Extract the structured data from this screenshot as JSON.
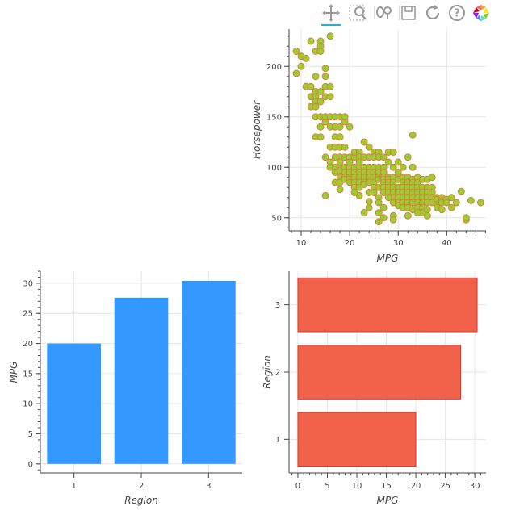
{
  "toolbar": {
    "tools": [
      {
        "name": "pan-tool-icon",
        "active": true
      },
      {
        "name": "box-zoom-tool-icon",
        "active": false
      },
      {
        "name": "lasso-select-tool-icon",
        "active": false
      },
      {
        "name": "save-tool-icon",
        "active": false
      },
      {
        "name": "reset-tool-icon",
        "active": false
      },
      {
        "name": "help-tool-icon",
        "active": false
      },
      {
        "name": "bokeh-logo-icon",
        "active": false
      }
    ]
  },
  "colors": {
    "scatter_fill": "#9ACD32",
    "scatter_line": "#E07A3A",
    "vbar_fill": "#3399FF",
    "hbar_fill": "#F2624A",
    "hbar_line": "#D23A2A",
    "axis": "#444444",
    "grid": "#e6e6e6"
  },
  "chart_data": [
    {
      "type": "scatter",
      "xlabel": "MPG",
      "ylabel": "Horsepower",
      "xlim": [
        7.5,
        48.1
      ],
      "ylim": [
        37,
        237
      ],
      "xticks": [
        10,
        20,
        30,
        40
      ],
      "yticks": [
        50,
        100,
        150,
        200
      ],
      "grid": true,
      "points": [
        [
          9,
          193
        ],
        [
          9,
          215
        ],
        [
          10,
          200
        ],
        [
          10,
          210
        ],
        [
          11,
          180
        ],
        [
          11,
          208
        ],
        [
          12,
          170
        ],
        [
          12,
          225
        ],
        [
          12,
          180
        ],
        [
          12,
          160
        ],
        [
          13,
          215
        ],
        [
          13,
          190
        ],
        [
          13,
          175
        ],
        [
          13,
          170
        ],
        [
          13,
          150
        ],
        [
          13,
          165
        ],
        [
          13,
          160
        ],
        [
          13,
          130
        ],
        [
          14,
          225
        ],
        [
          14,
          220
        ],
        [
          14,
          215
        ],
        [
          14,
          175
        ],
        [
          14,
          165
        ],
        [
          14,
          150
        ],
        [
          14,
          140
        ],
        [
          14,
          130
        ],
        [
          14,
          150
        ],
        [
          15,
          190
        ],
        [
          15,
          198
        ],
        [
          15,
          180
        ],
        [
          15,
          170
        ],
        [
          15,
          150
        ],
        [
          15,
          145
        ],
        [
          15,
          110
        ],
        [
          15,
          72
        ],
        [
          15,
          150
        ],
        [
          16,
          230
        ],
        [
          16,
          180
        ],
        [
          16,
          170
        ],
        [
          16,
          150
        ],
        [
          16,
          140
        ],
        [
          16,
          120
        ],
        [
          16,
          105
        ],
        [
          16,
          100
        ],
        [
          17,
          150
        ],
        [
          17,
          140
        ],
        [
          17,
          130
        ],
        [
          17,
          120
        ],
        [
          17,
          110
        ],
        [
          17,
          100
        ],
        [
          17,
          85
        ],
        [
          17,
          95
        ],
        [
          18,
          150
        ],
        [
          18,
          140
        ],
        [
          18,
          130
        ],
        [
          18,
          120
        ],
        [
          18,
          110
        ],
        [
          18,
          100
        ],
        [
          18,
          90
        ],
        [
          18,
          85
        ],
        [
          18,
          78
        ],
        [
          18,
          97
        ],
        [
          18,
          105
        ],
        [
          19,
          145
        ],
        [
          19,
          120
        ],
        [
          19,
          110
        ],
        [
          19,
          100
        ],
        [
          19,
          95
        ],
        [
          19,
          90
        ],
        [
          19,
          88
        ],
        [
          19,
          150
        ],
        [
          20,
          140
        ],
        [
          20,
          110
        ],
        [
          20,
          100
        ],
        [
          20,
          95
        ],
        [
          20,
          90
        ],
        [
          20,
          88
        ],
        [
          20,
          85
        ],
        [
          20,
          105
        ],
        [
          21,
          110
        ],
        [
          21,
          100
        ],
        [
          21,
          95
        ],
        [
          21,
          90
        ],
        [
          21,
          85
        ],
        [
          21,
          80
        ],
        [
          21,
          115
        ],
        [
          22,
          115
        ],
        [
          22,
          110
        ],
        [
          22,
          100
        ],
        [
          22,
          95
        ],
        [
          22,
          90
        ],
        [
          22,
          85
        ],
        [
          22,
          72
        ],
        [
          22,
          105
        ],
        [
          23,
          125
        ],
        [
          23,
          110
        ],
        [
          23,
          100
        ],
        [
          23,
          95
        ],
        [
          23,
          90
        ],
        [
          23,
          85
        ],
        [
          23,
          83
        ],
        [
          23,
          55
        ],
        [
          24,
          120
        ],
        [
          24,
          110
        ],
        [
          24,
          100
        ],
        [
          24,
          95
        ],
        [
          24,
          90
        ],
        [
          24,
          85
        ],
        [
          24,
          75
        ],
        [
          24,
          60
        ],
        [
          25,
          115
        ],
        [
          25,
          110
        ],
        [
          25,
          100
        ],
        [
          25,
          95
        ],
        [
          25,
          90
        ],
        [
          25,
          85
        ],
        [
          25,
          80
        ],
        [
          25,
          75
        ],
        [
          26,
          115
        ],
        [
          26,
          110
        ],
        [
          26,
          100
        ],
        [
          26,
          95
        ],
        [
          26,
          90
        ],
        [
          26,
          88
        ],
        [
          26,
          80
        ],
        [
          26,
          70
        ],
        [
          26,
          65
        ],
        [
          26,
          46
        ],
        [
          27,
          110
        ],
        [
          27,
          100
        ],
        [
          27,
          95
        ],
        [
          27,
          90
        ],
        [
          27,
          88
        ],
        [
          27,
          85
        ],
        [
          27,
          80
        ],
        [
          27,
          75
        ],
        [
          27,
          60
        ],
        [
          28,
          90
        ],
        [
          28,
          88
        ],
        [
          28,
          85
        ],
        [
          28,
          80
        ],
        [
          28,
          75
        ],
        [
          28,
          115
        ],
        [
          28,
          105
        ],
        [
          29,
          115
        ],
        [
          29,
          100
        ],
        [
          29,
          90
        ],
        [
          29,
          85
        ],
        [
          29,
          80
        ],
        [
          29,
          75
        ],
        [
          29,
          70
        ],
        [
          29,
          65
        ],
        [
          29,
          52
        ],
        [
          29,
          48
        ],
        [
          30,
          105
        ],
        [
          30,
          95
        ],
        [
          30,
          90
        ],
        [
          30,
          88
        ],
        [
          30,
          80
        ],
        [
          30,
          75
        ],
        [
          30,
          70
        ],
        [
          30,
          65
        ],
        [
          30,
          62
        ],
        [
          31,
          100
        ],
        [
          31,
          90
        ],
        [
          31,
          85
        ],
        [
          31,
          80
        ],
        [
          31,
          75
        ],
        [
          31,
          70
        ],
        [
          31,
          65
        ],
        [
          31,
          60
        ],
        [
          32,
          110
        ],
        [
          32,
          90
        ],
        [
          32,
          85
        ],
        [
          32,
          80
        ],
        [
          32,
          75
        ],
        [
          32,
          70
        ],
        [
          32,
          65
        ],
        [
          32,
          60
        ],
        [
          32,
          52
        ],
        [
          33,
          132
        ],
        [
          33,
          100
        ],
        [
          33,
          88
        ],
        [
          33,
          85
        ],
        [
          33,
          80
        ],
        [
          33,
          75
        ],
        [
          33,
          70
        ],
        [
          33,
          65
        ],
        [
          33,
          58
        ],
        [
          34,
          90
        ],
        [
          34,
          85
        ],
        [
          34,
          80
        ],
        [
          34,
          75
        ],
        [
          34,
          70
        ],
        [
          34,
          65
        ],
        [
          34,
          60
        ],
        [
          35,
          88
        ],
        [
          35,
          80
        ],
        [
          35,
          75
        ],
        [
          35,
          70
        ],
        [
          35,
          65
        ],
        [
          35,
          60
        ],
        [
          35,
          55
        ],
        [
          36,
          88
        ],
        [
          36,
          80
        ],
        [
          36,
          75
        ],
        [
          36,
          70
        ],
        [
          36,
          65
        ],
        [
          36,
          58
        ],
        [
          37,
          90
        ],
        [
          37,
          80
        ],
        [
          37,
          75
        ],
        [
          37,
          70
        ],
        [
          37,
          65
        ],
        [
          38,
          70
        ],
        [
          38,
          68
        ],
        [
          38,
          63
        ],
        [
          38,
          60
        ],
        [
          39,
          70
        ],
        [
          39,
          67
        ],
        [
          39,
          65
        ],
        [
          40,
          68
        ],
        [
          40,
          65
        ],
        [
          41,
          70
        ],
        [
          41,
          60
        ],
        [
          42,
          65
        ],
        [
          43,
          76
        ],
        [
          44,
          48
        ],
        [
          44,
          50
        ],
        [
          45,
          67
        ],
        [
          47,
          65
        ],
        [
          39,
          58
        ],
        [
          36,
          52
        ],
        [
          34,
          55
        ],
        [
          28,
          70
        ],
        [
          22,
          80
        ],
        [
          21,
          75
        ],
        [
          24,
          66
        ],
        [
          26,
          55
        ],
        [
          27,
          50
        ]
      ]
    },
    {
      "type": "bar",
      "xlabel": "Region",
      "ylabel": "MPG",
      "categories": [
        "1",
        "2",
        "3"
      ],
      "values": [
        20,
        27.6,
        30.4
      ],
      "ylim": [
        -1.5,
        32
      ],
      "yticks": [
        0,
        5,
        10,
        15,
        20,
        25,
        30
      ],
      "grid": true
    },
    {
      "type": "bar",
      "orientation": "horizontal",
      "xlabel": "MPG",
      "ylabel": "Region",
      "categories": [
        "1",
        "2",
        "3"
      ],
      "values": [
        20,
        27.6,
        30.4
      ],
      "xlim": [
        -1.5,
        31.9
      ],
      "xticks": [
        0,
        5,
        10,
        15,
        20,
        25,
        30
      ],
      "grid": true
    }
  ]
}
